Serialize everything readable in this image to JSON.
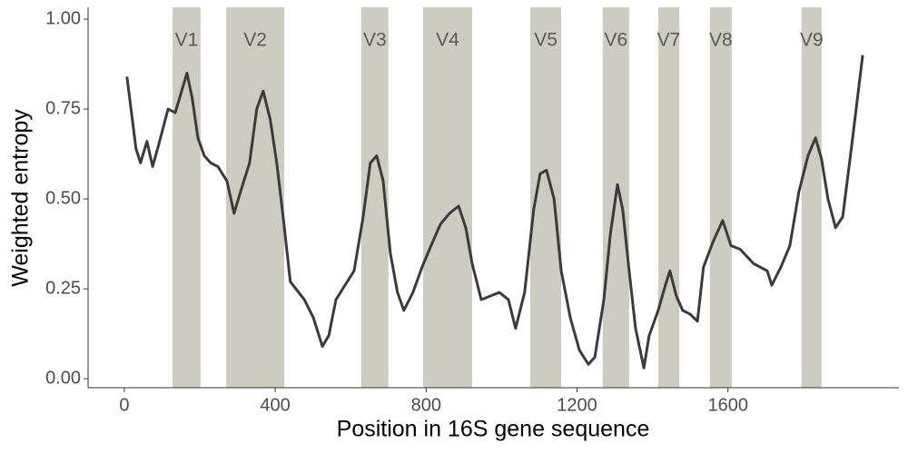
{
  "chart_data": {
    "type": "line",
    "xlabel": "Position in 16S gene sequence",
    "ylabel": "Weighted entropy",
    "xlim": [
      -96,
      2053
    ],
    "ylim": [
      -0.025,
      1.033
    ],
    "xticks": [
      0,
      400,
      800,
      1200,
      1600
    ],
    "yticks": [
      {
        "value": 0,
        "label": "0.00"
      },
      {
        "value": 0.25,
        "label": "0.25"
      },
      {
        "value": 0.5,
        "label": "0.50"
      },
      {
        "value": 0.75,
        "label": "0.75"
      },
      {
        "value": 1,
        "label": "1.00"
      }
    ],
    "region_color": "#cccdc0",
    "regions": [
      {
        "label": "V1",
        "start": 128,
        "end": 202
      },
      {
        "label": "V2",
        "start": 270,
        "end": 424
      },
      {
        "label": "V3",
        "start": 628,
        "end": 700
      },
      {
        "label": "V4",
        "start": 792,
        "end": 922
      },
      {
        "label": "V5",
        "start": 1076,
        "end": 1158
      },
      {
        "label": "V6",
        "start": 1268,
        "end": 1338
      },
      {
        "label": "V7",
        "start": 1415,
        "end": 1471
      },
      {
        "label": "V8",
        "start": 1552,
        "end": 1610
      },
      {
        "label": "V9",
        "start": 1795,
        "end": 1848
      }
    ],
    "series": [
      {
        "color": "#3d3a3b",
        "x": [
          7,
          31,
          43,
          60,
          75,
          91,
          116,
          135,
          152,
          166,
          180,
          195,
          212,
          229,
          248,
          272,
          291,
          308,
          332,
          351,
          368,
          387,
          404,
          421,
          440,
          477,
          501,
          525,
          542,
          561,
          585,
          609,
          633,
          652,
          669,
          686,
          705,
          724,
          741,
          765,
          789,
          813,
          838,
          862,
          886,
          905,
          922,
          946,
          970,
          994,
          1018,
          1037,
          1061,
          1085,
          1102,
          1119,
          1139,
          1158,
          1182,
          1206,
          1230,
          1247,
          1271,
          1288,
          1307,
          1321,
          1338,
          1355,
          1377,
          1391,
          1415,
          1434,
          1446,
          1463,
          1480,
          1499,
          1519,
          1535,
          1560,
          1586,
          1608,
          1632,
          1668,
          1704,
          1716,
          1740,
          1764,
          1788,
          1812,
          1832,
          1848,
          1865,
          1885,
          1904,
          1928,
          1957
        ],
        "values": [
          0.84,
          0.64,
          0.6,
          0.66,
          0.59,
          0.65,
          0.75,
          0.74,
          0.8,
          0.85,
          0.78,
          0.67,
          0.62,
          0.6,
          0.59,
          0.55,
          0.46,
          0.52,
          0.6,
          0.75,
          0.8,
          0.72,
          0.6,
          0.45,
          0.27,
          0.22,
          0.17,
          0.09,
          0.12,
          0.22,
          0.26,
          0.3,
          0.45,
          0.6,
          0.62,
          0.55,
          0.35,
          0.24,
          0.19,
          0.24,
          0.31,
          0.37,
          0.43,
          0.46,
          0.48,
          0.42,
          0.32,
          0.22,
          0.23,
          0.24,
          0.22,
          0.14,
          0.24,
          0.47,
          0.57,
          0.58,
          0.5,
          0.3,
          0.17,
          0.08,
          0.04,
          0.06,
          0.22,
          0.4,
          0.54,
          0.47,
          0.3,
          0.14,
          0.03,
          0.12,
          0.19,
          0.26,
          0.3,
          0.23,
          0.19,
          0.18,
          0.16,
          0.31,
          0.38,
          0.44,
          0.37,
          0.36,
          0.32,
          0.3,
          0.26,
          0.31,
          0.37,
          0.52,
          0.62,
          0.67,
          0.61,
          0.5,
          0.42,
          0.45,
          0.65,
          0.9
        ]
      }
    ]
  }
}
